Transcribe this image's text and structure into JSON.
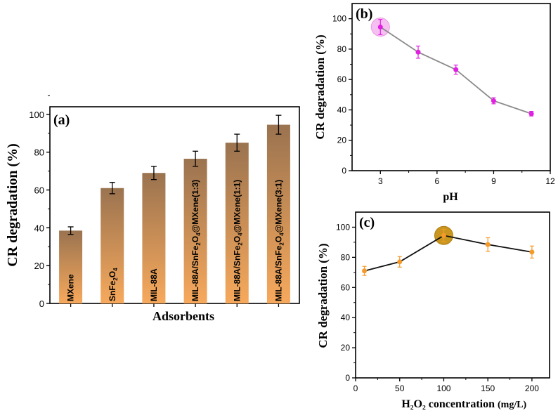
{
  "chart_data": [
    {
      "panel": "(a)",
      "type": "bar",
      "title": "",
      "xlabel": "Adsorbents",
      "ylabel": "CR degradation (%)",
      "ylim": [
        0,
        100
      ],
      "yticks": [
        "0",
        "20",
        "40",
        "60",
        "80",
        "100"
      ],
      "categories": [
        {
          "pre": "MXene",
          "sub": "",
          "mid": "",
          "sub2": "",
          "post": ""
        },
        {
          "pre": "SnFe",
          "sub": "2",
          "mid": "O",
          "sub2": "4",
          "post": ""
        },
        {
          "pre": "MIL-88A",
          "sub": "",
          "mid": "",
          "sub2": "",
          "post": ""
        },
        {
          "pre": "MIL-88A/SnFe",
          "sub": "2",
          "mid": "O",
          "sub2": "4",
          "post": "@MXene(1:3)"
        },
        {
          "pre": "MIL-88A/SnFe",
          "sub": "2",
          "mid": "O",
          "sub2": "4",
          "post": "@MXene(1:1)"
        },
        {
          "pre": "MIL-88A/SnFe",
          "sub": "2",
          "mid": "O",
          "sub2": "4",
          "post": "@MXene(3:1)"
        }
      ],
      "values": [
        38.5,
        61,
        69,
        76.5,
        85,
        94.5
      ],
      "errors": [
        2,
        3,
        3.5,
        4,
        4.5,
        5
      ],
      "colors": {
        "top": "#9a7350",
        "bottom": "#f7a95c"
      }
    },
    {
      "panel": "(b)",
      "type": "line",
      "xlabel": "pH",
      "ylabel": "CR degradation (%)",
      "xlim": [
        1.5,
        12
      ],
      "ylim": [
        0,
        110
      ],
      "xticks": [
        "3",
        "6",
        "9",
        "12"
      ],
      "yticks": [
        "0",
        "20",
        "40",
        "60",
        "80",
        "100"
      ],
      "x": [
        3,
        5,
        7,
        9,
        11
      ],
      "y": [
        94.5,
        78,
        66.5,
        46,
        37.5
      ],
      "errors": [
        5,
        4,
        3,
        2,
        1.5
      ],
      "highlight_index": 0,
      "colors": {
        "marker": "#e020e0",
        "line": "#8a8a8a",
        "highlight": "#f6bff2"
      }
    },
    {
      "panel": "(c)",
      "type": "line",
      "xlabel": "H₂O₂ concentration",
      "xlabel_unit": "(mg/L)",
      "ylabel": "CR degradation (%)",
      "xlim": [
        0,
        220
      ],
      "ylim": [
        0,
        110
      ],
      "xticks": [
        "0",
        "50",
        "100",
        "150",
        "200"
      ],
      "yticks": [
        "0",
        "20",
        "40",
        "60",
        "80",
        "100"
      ],
      "x": [
        10,
        50,
        100,
        150,
        200
      ],
      "y": [
        71,
        77,
        94.5,
        88.5,
        83.5
      ],
      "errors": [
        3,
        3.5,
        4,
        4.5,
        4
      ],
      "highlight_index": 2,
      "colors": {
        "marker": "#f59a2a",
        "line": "#111111",
        "highlight": "#c9961f"
      }
    }
  ]
}
